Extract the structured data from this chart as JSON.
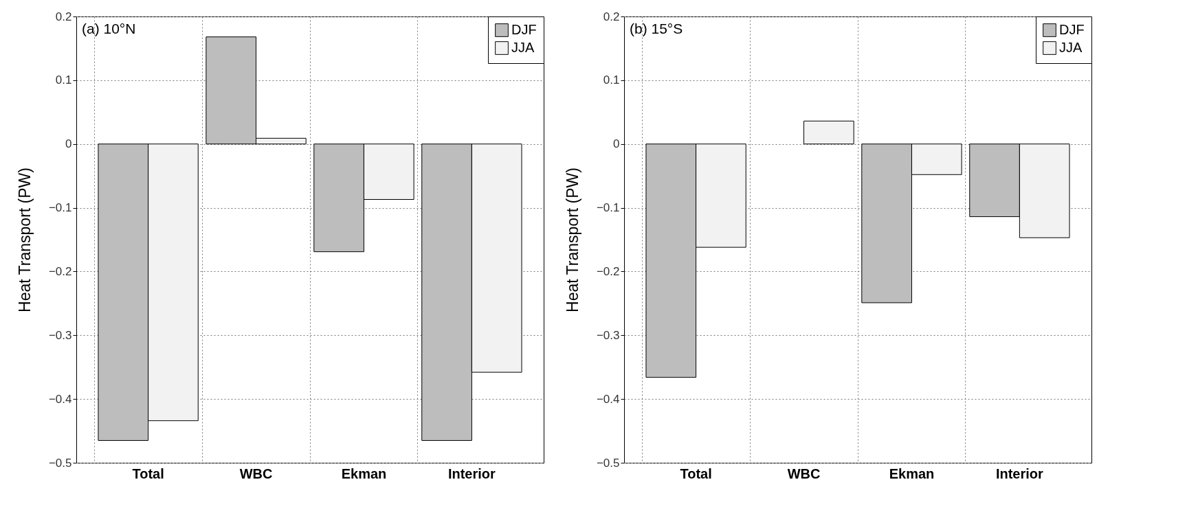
{
  "chart_data": [
    {
      "type": "bar",
      "title": "(a) 10°N",
      "ylabel": "Heat Transport (PW)",
      "categories": [
        "Total",
        "WBC",
        "Ekman",
        "Interior"
      ],
      "series": [
        {
          "name": "DJF",
          "color": "#bdbdbd",
          "values": [
            -0.465,
            0.168,
            -0.169,
            -0.465
          ]
        },
        {
          "name": "JJA",
          "color": "#f2f2f2",
          "values": [
            -0.434,
            0.009,
            -0.087,
            -0.358
          ]
        }
      ],
      "ylim": [
        -0.5,
        0.2
      ],
      "yticks": [
        -0.5,
        -0.4,
        -0.3,
        -0.2,
        -0.1,
        0,
        0.1,
        0.2
      ],
      "grid": true,
      "legend": "top right"
    },
    {
      "type": "bar",
      "title": "(b) 15°S",
      "ylabel": "Heat Transport (PW)",
      "categories": [
        "Total",
        "WBC",
        "Ekman",
        "Interior"
      ],
      "series": [
        {
          "name": "DJF",
          "color": "#bdbdbd",
          "values": [
            -0.366,
            null,
            -0.249,
            -0.114
          ]
        },
        {
          "name": "JJA",
          "color": "#f2f2f2",
          "values": [
            -0.162,
            0.036,
            -0.048,
            -0.147
          ]
        }
      ],
      "ylim": [
        -0.5,
        0.2
      ],
      "yticks": [
        -0.5,
        -0.4,
        -0.3,
        -0.2,
        -0.1,
        0,
        0.1,
        0.2
      ],
      "grid": true,
      "legend": "top right"
    }
  ]
}
